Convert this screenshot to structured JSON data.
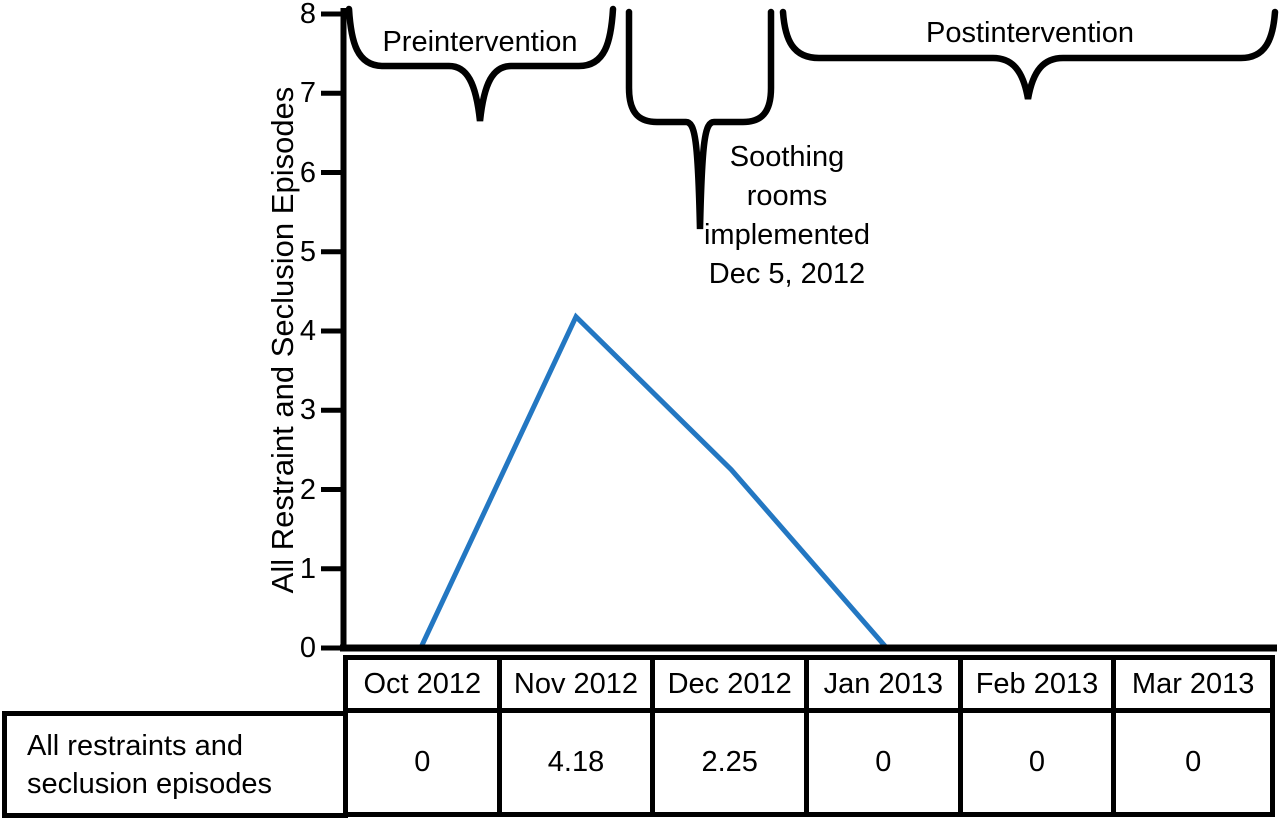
{
  "chart_data": {
    "type": "line",
    "categories": [
      "Oct 2012",
      "Nov 2012",
      "Dec 2012",
      "Jan 2013",
      "Feb 2013",
      "Mar 2013"
    ],
    "series": [
      {
        "name": "All restraints and seclusion episodes",
        "values": [
          0,
          4.18,
          2.25,
          0,
          0,
          0
        ]
      }
    ],
    "xlabel": "",
    "ylabel": "All Restraint and Seclusion Episodes",
    "ylim": [
      0,
      8
    ],
    "yticks": [
      8,
      7,
      6,
      5,
      4,
      3,
      2,
      1,
      0
    ],
    "grid": false,
    "legend": "none",
    "line_color": "#2377c2",
    "annotations": [
      "Preintervention",
      "Soothing rooms implemented Dec 5, 2012",
      "Postintervention"
    ]
  },
  "axis": {
    "ylabel": "All Restraint and Seclusion Episodes",
    "tick_labels": [
      "8",
      "7",
      "6",
      "5",
      "4",
      "3",
      "2",
      "1",
      "0"
    ]
  },
  "annotations": {
    "preintervention": "Preintervention",
    "soothing": "Soothing\nrooms\nimplemented\nDec 5, 2012",
    "postintervention": "Postintervention"
  },
  "table": {
    "row_label": "All restraints and\nseclusion episodes",
    "columns": [
      "Oct 2012",
      "Nov 2012",
      "Dec 2012",
      "Jan 2013",
      "Feb 2013",
      "Mar 2013"
    ],
    "values": [
      "0",
      "4.18",
      "2.25",
      "0",
      "0",
      "0"
    ]
  }
}
